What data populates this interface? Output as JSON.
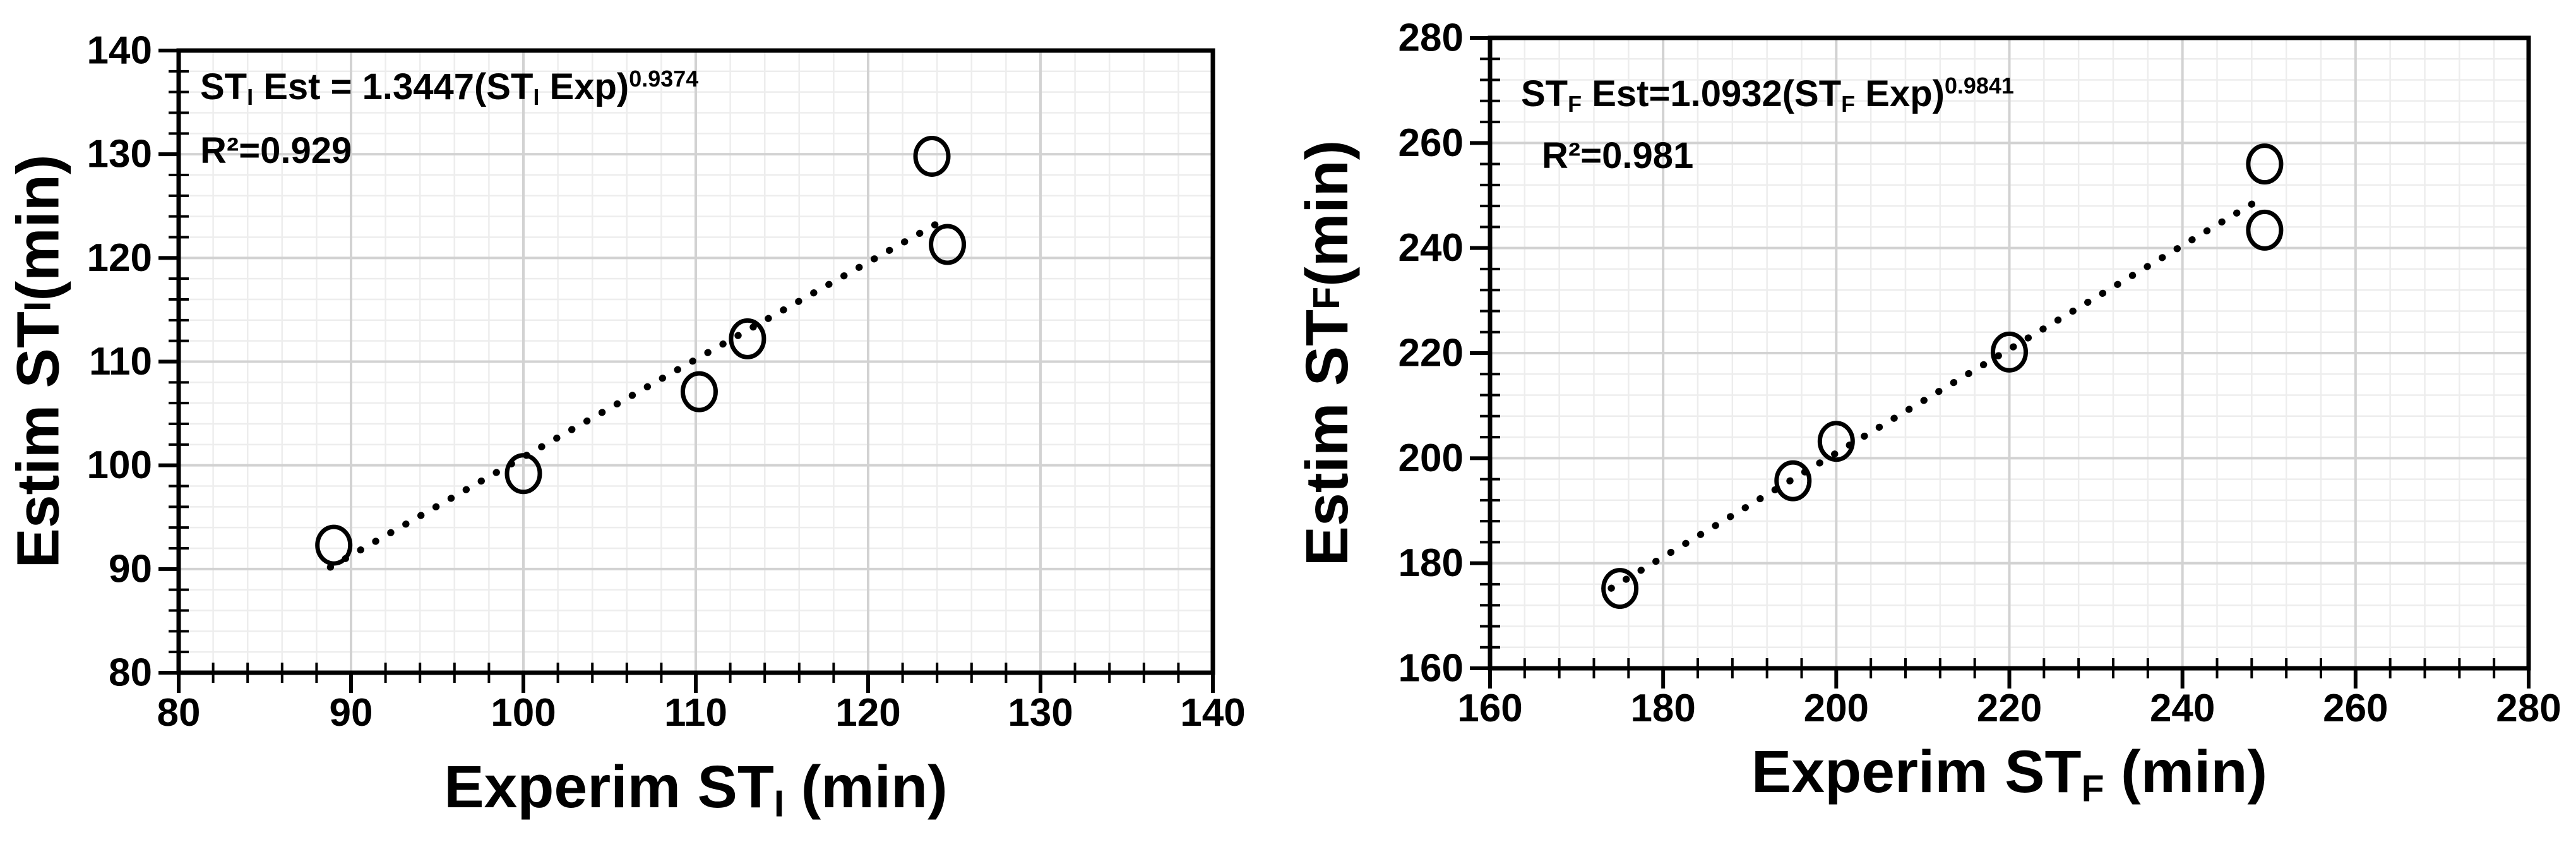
{
  "colors": {
    "text": "#000000",
    "axis": "#000000",
    "marker": "#000000",
    "fit_line": "#000000",
    "minor_grid": "#ededed",
    "major_grid": "#d2d2d2",
    "background": "#ffffff"
  },
  "chart_data": [
    {
      "type": "scatter",
      "title": "",
      "equation": {
        "pre": "ST",
        "sub1": "I",
        "mid": " Est = 1.3447(ST",
        "sub2": "I",
        "mid2": " Exp)",
        "exponent": "0.9374"
      },
      "r_squared": "R²=0.929",
      "xlabel": {
        "main": "Experim ST",
        "sub": "I",
        "unit": " (min)"
      },
      "ylabel": {
        "main": "Estim ST",
        "sub": "I",
        "unit": " (min)"
      },
      "xlim": [
        80,
        140
      ],
      "ylim": [
        80,
        140
      ],
      "x_ticks": [
        80,
        90,
        100,
        110,
        120,
        130,
        140
      ],
      "y_ticks": [
        80,
        90,
        100,
        110,
        120,
        130,
        140
      ],
      "minor_step": 2,
      "grid": true,
      "legend_position": "none",
      "marker": "open-circle",
      "points_xy": [
        [
          89,
          92.3
        ],
        [
          100,
          99.2
        ],
        [
          110.2,
          107.1
        ],
        [
          113,
          112.2
        ],
        [
          123.7,
          129.8
        ],
        [
          124.6,
          121.3
        ]
      ],
      "fit_line": {
        "style": "dotted",
        "model": "power",
        "a": 1.3447,
        "b": 0.9374,
        "x_start": 88.8,
        "x_end": 124.6
      }
    },
    {
      "type": "scatter",
      "title": "",
      "equation": {
        "pre": "ST",
        "sub1": "F",
        "mid": " Est=1.0932(ST",
        "sub2": "F",
        "mid2": " Exp)",
        "exponent": "0.9841"
      },
      "r_squared": "R²=0.981",
      "xlabel": {
        "main": "Experim ST",
        "sub": "F",
        "unit": " (min)"
      },
      "ylabel": {
        "main": "Estim ST",
        "sub": "F",
        "unit": " (min)"
      },
      "xlim": [
        160,
        280
      ],
      "ylim": [
        160,
        280
      ],
      "x_ticks": [
        160,
        180,
        200,
        220,
        240,
        260,
        280
      ],
      "y_ticks": [
        160,
        180,
        200,
        220,
        240,
        260,
        280
      ],
      "minor_step": 4,
      "grid": true,
      "legend_position": "none",
      "marker": "open-circle",
      "points_xy": [
        [
          175,
          175.2
        ],
        [
          195,
          195.7
        ],
        [
          200,
          203.2
        ],
        [
          220,
          220.2
        ],
        [
          249.5,
          256
        ],
        [
          249.5,
          243.4
        ]
      ],
      "fit_line": {
        "style": "dotted",
        "model": "power",
        "a": 1.0932,
        "b": 0.9841,
        "x_start": 174,
        "x_end": 249.3
      }
    }
  ]
}
